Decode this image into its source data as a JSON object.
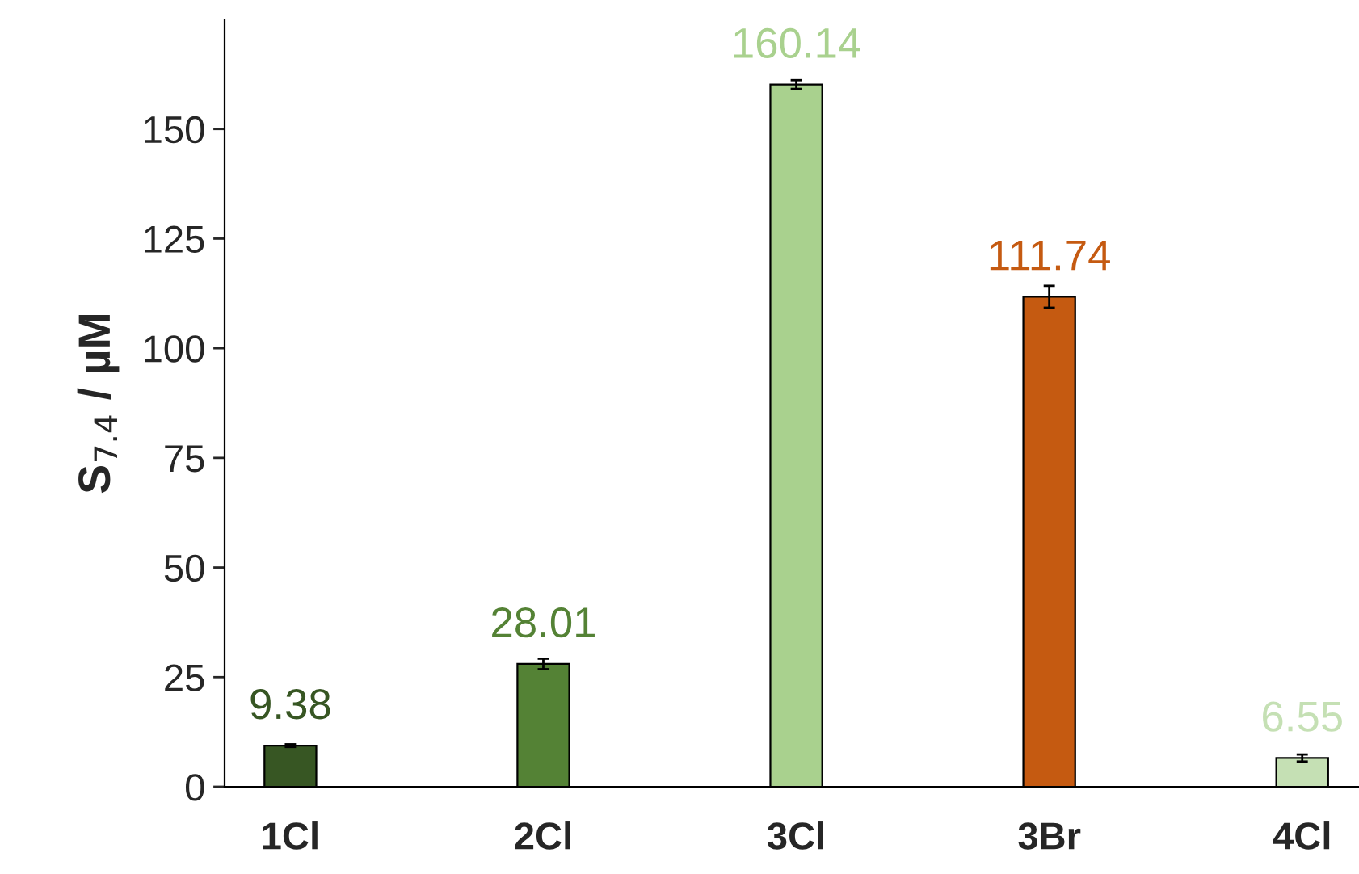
{
  "chart_data": {
    "type": "bar",
    "ylabel": "S$_{7.4}$ / µM",
    "categories": [
      "1Cl",
      "2Cl",
      "3Cl",
      "3Br",
      "4Cl"
    ],
    "values": [
      9.38,
      28.01,
      160.14,
      111.74,
      6.55
    ],
    "errors": [
      0.3,
      1.2,
      1.0,
      2.5,
      0.8
    ],
    "colors": [
      "#375623",
      "#548235",
      "#a9d18e",
      "#c55a11",
      "#c5e0b4"
    ],
    "ylim": [
      0,
      175
    ],
    "yticks": [
      0,
      25,
      50,
      75,
      100,
      125,
      150
    ],
    "data_labels": true,
    "grid": false,
    "legend": false
  }
}
